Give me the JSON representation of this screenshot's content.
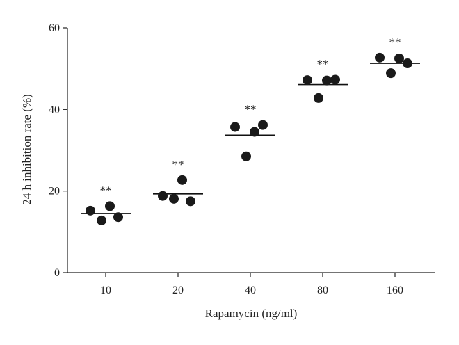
{
  "chart_data": {
    "type": "scatter",
    "title": "",
    "xlabel": "Rapamycin (ng/ml)",
    "ylabel": "24 h inhibition rate (%)",
    "ylim": [
      0,
      60
    ],
    "y_ticks": [
      "0",
      "20",
      "40",
      "60"
    ],
    "categories": [
      "10",
      "20",
      "40",
      "80",
      "160"
    ],
    "groups": [
      {
        "category": "10",
        "points": [
          15.2,
          16.3,
          13.6,
          12.8
        ],
        "mean": 14.5,
        "significance": "**"
      },
      {
        "category": "20",
        "points": [
          18.8,
          22.7,
          17.5,
          18.1
        ],
        "mean": 19.3,
        "significance": "**"
      },
      {
        "category": "40",
        "points": [
          35.7,
          34.5,
          36.2,
          28.5
        ],
        "mean": 33.7,
        "significance": "**"
      },
      {
        "category": "80",
        "points": [
          47.2,
          47.1,
          47.3,
          42.8
        ],
        "mean": 46.1,
        "significance": "**"
      },
      {
        "category": "160",
        "points": [
          52.7,
          52.5,
          51.3,
          48.9
        ],
        "mean": 51.3,
        "significance": "**"
      }
    ],
    "marker_color": "#1a1a1a",
    "grid": false,
    "legend": "none"
  }
}
